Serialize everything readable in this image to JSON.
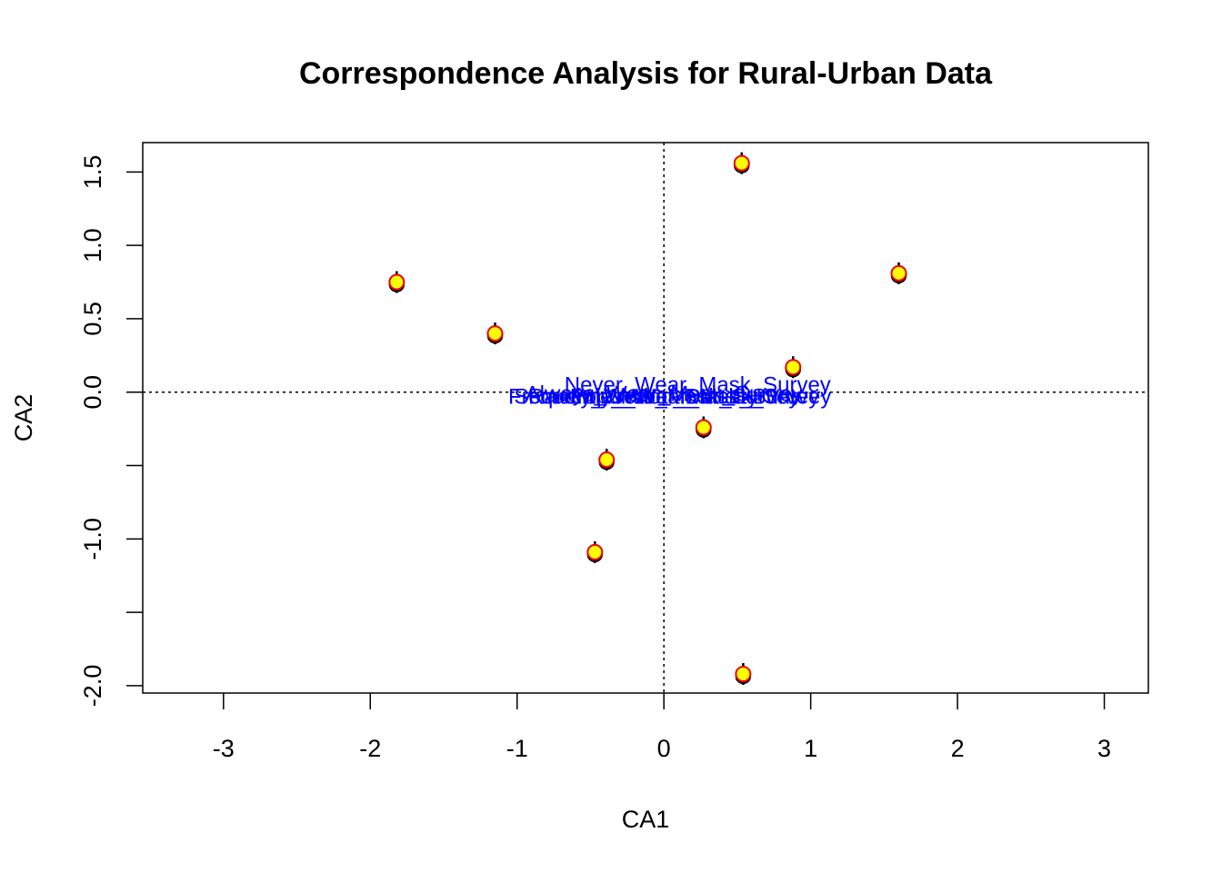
{
  "chart_data": {
    "type": "scatter",
    "title": "Correspondence Analysis for Rural-Urban Data",
    "xlabel": "CA1",
    "ylabel": "CA2",
    "xlim": [
      -3.55,
      3.3
    ],
    "ylim": [
      -2.05,
      1.7
    ],
    "xticks": [
      -3,
      -2,
      -1,
      0,
      1,
      2,
      3
    ],
    "xtick_labels": [
      "-3",
      "-2",
      "-1",
      "0",
      "1",
      "2",
      "3"
    ],
    "yticks": [
      -2.0,
      -1.5,
      -1.0,
      -0.5,
      0.0,
      0.5,
      1.0,
      1.5
    ],
    "ytick_labels": [
      "-2.0",
      "",
      "-1.0",
      "",
      "0.0",
      "0.5",
      "1.0",
      "1.5"
    ],
    "reference_lines": {
      "x": 0,
      "y": 0,
      "style": "dotted"
    },
    "grid": false,
    "legend": "none",
    "colors": {
      "point_fill": "#FFFF00",
      "point_stroke": "#E8001C",
      "shadow_point": "#5a0000",
      "label_color": "#0000FF"
    },
    "points": [
      {
        "x": -1.82,
        "y": 0.75
      },
      {
        "x": -1.15,
        "y": 0.4
      },
      {
        "x": -0.39,
        "y": -0.46
      },
      {
        "x": -0.47,
        "y": -1.09
      },
      {
        "x": 0.27,
        "y": -0.24
      },
      {
        "x": 0.53,
        "y": 1.56
      },
      {
        "x": 0.88,
        "y": 0.17
      },
      {
        "x": 1.6,
        "y": 0.81
      },
      {
        "x": 0.54,
        "y": -1.92
      }
    ],
    "labels": [
      {
        "text": "Never_Wear_Mask_Survey",
        "x": 0.23,
        "y": 0.05
      },
      {
        "text": "Always_Wear_Mask_Survey",
        "x": 0.0,
        "y": -0.01
      },
      {
        "text": "Rarely_Wear_Mask_Survey",
        "x": 0.0,
        "y": -0.03
      },
      {
        "text": "Frequently_Wear_Mask_Survey",
        "x": 0.0,
        "y": -0.03
      },
      {
        "text": "Population_Density",
        "x": 0.0,
        "y": -0.03
      },
      {
        "text": "Sometimes_Wear_Mask_Survey",
        "x": 0.06,
        "y": -0.03
      }
    ]
  }
}
